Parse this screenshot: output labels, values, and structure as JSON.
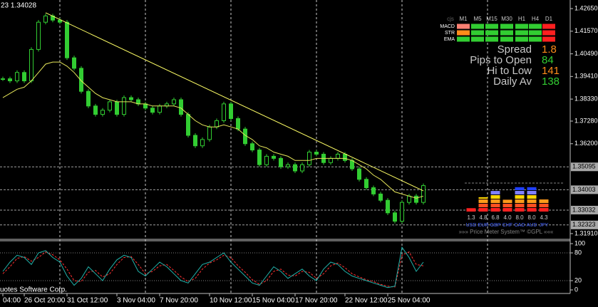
{
  "chart_data": {
    "type": "candlestick",
    "title": "23 1.34028",
    "watermark": "uotes Software Corp.",
    "candle_color": "#32cd32",
    "ma_color": "#e6e65a",
    "trend_color": "#ffff66",
    "grid": true,
    "xlim": [
      -0.4,
      79.6
    ],
    "xticks": [
      {
        "value": 0,
        "label": "04:00"
      },
      {
        "value": 3,
        "label": "26 Oct 20:00"
      },
      {
        "value": 9,
        "label": "31 Oct 12:00"
      },
      {
        "value": 16,
        "label": "3 Nov 04:00"
      },
      {
        "value": 22,
        "label": "7 Nov 20:00"
      },
      {
        "value": 29,
        "label": "10 Nov 12:00"
      },
      {
        "value": 35,
        "label": "15 Nov 04:00"
      },
      {
        "value": 41,
        "label": "17 Nov 20:00"
      },
      {
        "value": 48,
        "label": "22 Nov 12:00"
      },
      {
        "value": 54,
        "label": "25 Nov 04:00"
      }
    ],
    "xgrid": [
      8,
      20,
      32,
      44,
      56,
      68
    ],
    "ylim": [
      1.3167,
      1.4306
    ],
    "yticks": [
      {
        "value": 1.4265,
        "label": "1.42650"
      },
      {
        "value": 1.4157,
        "label": "1.41570"
      },
      {
        "value": 1.4049,
        "label": "1.40490"
      },
      {
        "value": 1.3941,
        "label": "1.39410"
      },
      {
        "value": 1.3833,
        "label": "1.38330"
      },
      {
        "value": 1.3728,
        "label": "1.37280"
      },
      {
        "value": 1.362,
        "label": "1.36200"
      },
      {
        "value": 1.3191,
        "label": "1.31910"
      }
    ],
    "levels": [
      {
        "value": 1.35095,
        "label": "1.35095"
      },
      {
        "value": 1.34003,
        "label": "1.34003"
      },
      {
        "value": 1.33032,
        "label": "1.33032"
      },
      {
        "value": 1.32323,
        "label": "1.32323"
      }
    ],
    "close": [
      1.393,
      1.392,
      1.396,
      1.392,
      1.407,
      1.42,
      1.423,
      1.421,
      1.42,
      1.403,
      1.398,
      1.387,
      1.38,
      1.376,
      1.378,
      1.382,
      1.376,
      1.384,
      1.383,
      1.381,
      1.379,
      1.377,
      1.38,
      1.381,
      1.383,
      1.376,
      1.366,
      1.361,
      1.364,
      1.37,
      1.373,
      1.381,
      1.374,
      1.369,
      1.362,
      1.359,
      1.352,
      1.356,
      1.355,
      1.351,
      1.352,
      1.349,
      1.352,
      1.358,
      1.357,
      1.353,
      1.355,
      1.357,
      1.354,
      1.35,
      1.345,
      1.341,
      1.338,
      1.335,
      1.329,
      1.325,
      1.334,
      1.337,
      1.334,
      1.342
    ],
    "ma": [
      1.384,
      1.386,
      1.388,
      1.389,
      1.392,
      1.396,
      1.4,
      1.401,
      1.401,
      1.399,
      1.396,
      1.392,
      1.389,
      1.386,
      1.384,
      1.383,
      1.382,
      1.382,
      1.382,
      1.381,
      1.381,
      1.38,
      1.38,
      1.38,
      1.38,
      1.379,
      1.376,
      1.373,
      1.371,
      1.37,
      1.37,
      1.371,
      1.37,
      1.369,
      1.366,
      1.364,
      1.361,
      1.36,
      1.358,
      1.357,
      1.356,
      1.354,
      1.354,
      1.354,
      1.355,
      1.355,
      1.355,
      1.355,
      1.355,
      1.354,
      1.352,
      1.35,
      1.347,
      1.345,
      1.342,
      1.339,
      1.338,
      1.337,
      1.336,
      1.337
    ],
    "trendline": {
      "x": [
        6,
        59
      ],
      "values": [
        1.4245,
        1.3395
      ]
    },
    "oscillator": {
      "ylim": [
        -7.7,
        106.2
      ],
      "yticks": [
        100,
        80,
        20,
        0
      ],
      "levels": [
        80,
        20
      ],
      "main_color": "#20b2aa",
      "signal_color": "#ff3030",
      "main": [
        40,
        60,
        75,
        70,
        55,
        80,
        85,
        70,
        60,
        30,
        10,
        25,
        50,
        35,
        20,
        45,
        65,
        75,
        70,
        40,
        30,
        45,
        60,
        50,
        35,
        20,
        15,
        35,
        55,
        60,
        70,
        80,
        60,
        45,
        30,
        15,
        10,
        30,
        50,
        40,
        25,
        35,
        45,
        30,
        20,
        45,
        60,
        55,
        40,
        30,
        25,
        20,
        15,
        10,
        5,
        8,
        92,
        70,
        40,
        60
      ],
      "signal": [
        35,
        50,
        68,
        72,
        62,
        70,
        82,
        76,
        65,
        45,
        20,
        18,
        38,
        42,
        28,
        35,
        55,
        70,
        72,
        55,
        35,
        40,
        52,
        55,
        42,
        28,
        18,
        25,
        45,
        58,
        65,
        75,
        70,
        52,
        38,
        22,
        12,
        20,
        40,
        45,
        32,
        30,
        40,
        38,
        25,
        35,
        52,
        58,
        48,
        35,
        28,
        22,
        18,
        12,
        8,
        6,
        75,
        82,
        55,
        52
      ]
    }
  },
  "info_panel": {
    "columns": [
      "cjs",
      "M1",
      "M5",
      "M15",
      "M30",
      "H1",
      "H4",
      "D1"
    ],
    "rows": [
      {
        "label": "MACD",
        "colors": [
          "#fa8072",
          "#32cd32",
          "#32cd32",
          "#32cd32",
          "#32cd32",
          "#32cd32",
          "#ff2020"
        ]
      },
      {
        "label": "STR",
        "colors": [
          "#ff8c1a",
          "#32cd32",
          "#32cd32",
          "#32cd32",
          "#32cd32",
          "#32cd32",
          "#ff2020"
        ]
      },
      {
        "label": "EMA",
        "colors": [
          "#32cd32",
          "#32cd32",
          "#32cd32",
          "#32cd32",
          "#32cd32",
          "#32cd32",
          "#ff2020"
        ]
      }
    ],
    "stats": [
      {
        "label": "Spread",
        "value": 1.8,
        "color": "#ff8c1a"
      },
      {
        "label": "Pips to Open",
        "value": 84,
        "color": "#32cd32"
      },
      {
        "label": "Hi to Low",
        "value": 141,
        "color": "#ff8c1a"
      },
      {
        "label": "Daily Av",
        "value": 138,
        "color": "#32cd32"
      }
    ]
  },
  "price_meter": {
    "currencies": [
      "USD",
      "EUR",
      "GBP",
      "CHF",
      "CAD",
      "AUD",
      "JPY"
    ],
    "values": [
      1.3,
      4.8,
      6.8,
      4.0,
      8.0,
      8.0,
      4.3
    ],
    "value_labels": [
      "1.3",
      "4.8",
      "6.8",
      "4.0",
      "8.0",
      "8.0",
      "4.3"
    ],
    "band_colors": [
      "#ff2020",
      "#ff5020",
      "#ff9a1a",
      "#ffd700",
      "#8080ff",
      "#2040ff"
    ],
    "footer": "»»» Price Meter System™ ©GPL «««"
  }
}
